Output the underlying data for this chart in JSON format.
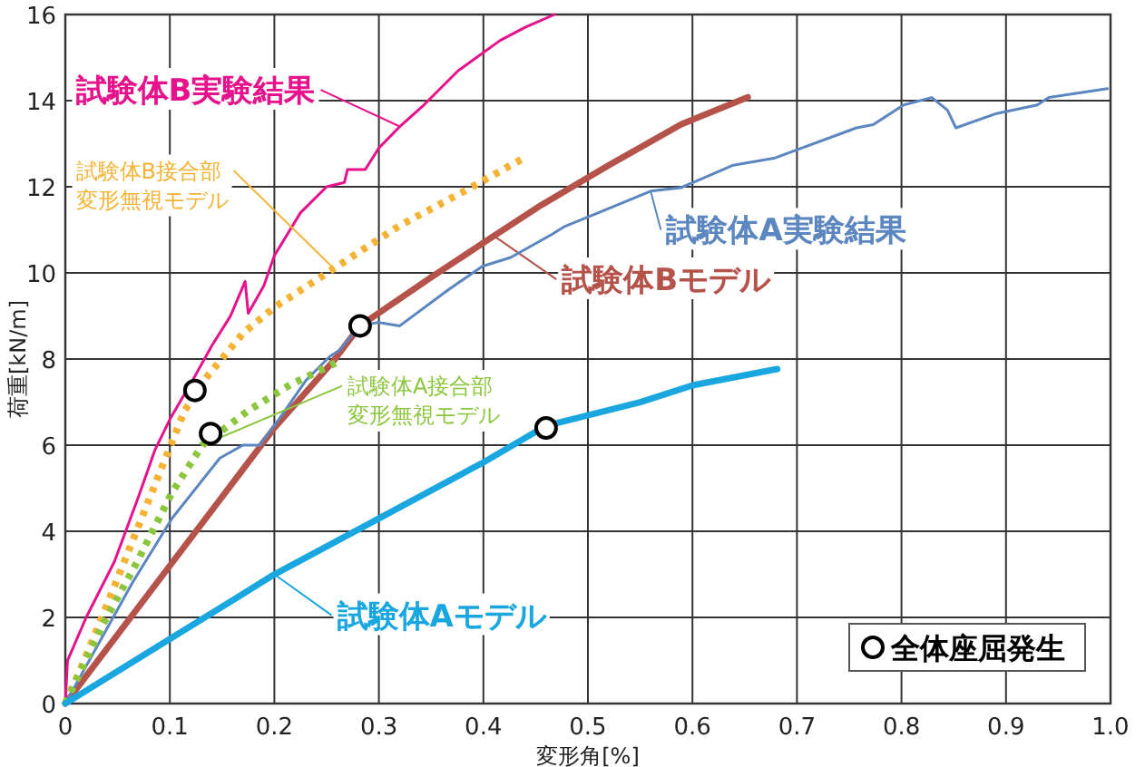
{
  "chart_data": {
    "type": "line",
    "xlabel": "変形角[%]",
    "ylabel": "荷重[kN/m]",
    "xlim": [
      0,
      1
    ],
    "ylim": [
      0,
      16
    ],
    "xticks": [
      0,
      0.1,
      0.2,
      0.3,
      0.4,
      0.5,
      0.6,
      0.7,
      0.8,
      0.9,
      {
        "value": 1,
        "label": "1.0"
      }
    ],
    "yticks": [
      0,
      2,
      4,
      6,
      8,
      10,
      12,
      14,
      16
    ],
    "grid": true,
    "legend": "bottom right",
    "series": [
      {
        "name": "試験体B実験結果",
        "color": "#e6128c",
        "line_style": "solid",
        "x": [
          0,
          0.002,
          0.02,
          0.047,
          0.07,
          0.086,
          0.1,
          0.124,
          0.14,
          0.158,
          0.172,
          0.175,
          0.19,
          0.2,
          0.225,
          0.25,
          0.267,
          0.27,
          0.287,
          0.3,
          0.32,
          0.343,
          0.376,
          0.416,
          0.44,
          0.468
        ],
        "values": [
          0,
          1,
          2,
          3.3,
          4.8,
          5.9,
          6.6,
          7.6,
          8.3,
          9.0,
          9.8,
          9.06,
          9.7,
          10.4,
          11.4,
          12.0,
          12.1,
          12.4,
          12.4,
          12.9,
          13.4,
          13.9,
          14.7,
          15.4,
          15.7,
          16
        ]
      },
      {
        "name": "試験体B接合部変形無視モデル",
        "color": "#f5b335",
        "line_style": "dotted",
        "x": [
          0,
          0.018,
          0.04,
          0.064,
          0.091,
          0.114,
          0.136,
          0.17,
          0.2,
          0.257,
          0.32,
          0.382,
          0.441
        ],
        "values": [
          0,
          1,
          2.3,
          3.76,
          5.4,
          6.8,
          7.6,
          8.6,
          9.2,
          10.1,
          11.1,
          11.9,
          12.7
        ]
      },
      {
        "name": "試験体Bモデル",
        "color": "#b5524a",
        "line_style": "solid",
        "x": [
          0,
          0.1,
          0.2,
          0.256,
          0.282,
          0.35,
          0.41,
          0.455,
          0.52,
          0.589,
          0.653
        ],
        "values": [
          0,
          3.2,
          6.4,
          7.94,
          8.77,
          9.9,
          10.86,
          11.57,
          12.5,
          13.45,
          14.08
        ]
      },
      {
        "name": "試験体A実験結果",
        "color": "#5b86c0",
        "line_style": "solid",
        "x": [
          0,
          0.064,
          0.102,
          0.148,
          0.17,
          0.186,
          0.203,
          0.23,
          0.253,
          0.262,
          0.282,
          0.299,
          0.32,
          0.366,
          0.399,
          0.426,
          0.466,
          0.477,
          0.51,
          0.56,
          0.589,
          0.639,
          0.678,
          0.757,
          0.773,
          0.802,
          0.829,
          0.844,
          0.852,
          0.891,
          0.93,
          0.941,
          0.997
        ],
        "values": [
          0,
          2.8,
          4.3,
          5.7,
          6.0,
          6.0,
          6.55,
          7.5,
          8.06,
          8.2,
          8.77,
          8.85,
          8.77,
          9.6,
          10.15,
          10.36,
          10.9,
          11.07,
          11.4,
          11.9,
          11.98,
          12.5,
          12.66,
          13.37,
          13.44,
          13.9,
          14.07,
          13.78,
          13.37,
          13.7,
          13.9,
          14.07,
          14.28
        ]
      },
      {
        "name": "試験体A接合部変形無視モデル",
        "color": "#8cc63f",
        "line_style": "dotted",
        "x": [
          0,
          0.035,
          0.069,
          0.102,
          0.131,
          0.175,
          0.215,
          0.262
        ],
        "values": [
          0,
          1.8,
          3.3,
          4.9,
          6.0,
          6.8,
          7.4,
          7.95
        ]
      },
      {
        "name": "試験体Aモデル",
        "color": "#1aa7e0",
        "line_style": "solid",
        "x": [
          0,
          0.1,
          0.2,
          0.3,
          0.4,
          0.46,
          0.55,
          0.6,
          0.681
        ],
        "values": [
          0,
          1.5,
          3,
          4.3,
          5.6,
          6.45,
          7.0,
          7.39,
          7.77
        ]
      },
      {
        "name": "全体座屈発生",
        "type": "scatter",
        "marker": "circle",
        "color": "#000000",
        "x": [
          0.124,
          0.139,
          0.282,
          0.46
        ],
        "values": [
          7.27,
          6.27,
          8.77,
          6.4
        ]
      }
    ]
  }
}
